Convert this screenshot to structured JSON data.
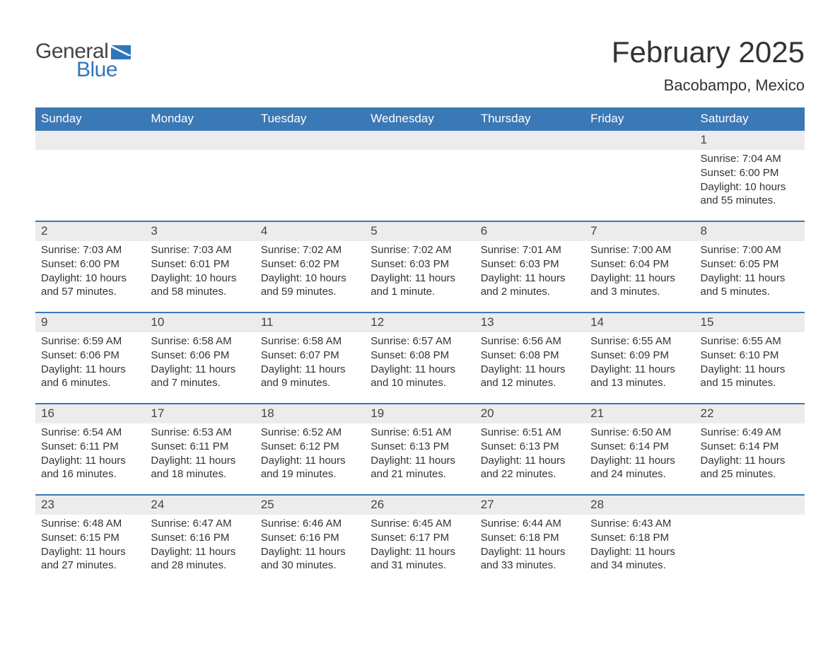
{
  "brand": {
    "name_part1": "General",
    "name_part2": "Blue",
    "text_color": "#444444",
    "accent_color": "#2f77bb",
    "flag_color": "#2f77bb"
  },
  "header": {
    "month_title": "February 2025",
    "location": "Bacobampo, Mexico",
    "title_fontsize": 42,
    "location_fontsize": 22,
    "title_color": "#333333"
  },
  "calendar": {
    "header_bg": "#3b78b6",
    "header_text_color": "#ffffff",
    "daynum_bg": "#ececec",
    "week_border_color": "#3b78b6",
    "text_color": "#333333",
    "weekdays": [
      "Sunday",
      "Monday",
      "Tuesday",
      "Wednesday",
      "Thursday",
      "Friday",
      "Saturday"
    ],
    "weeks": [
      {
        "days": [
          {
            "num": "",
            "lines": []
          },
          {
            "num": "",
            "lines": []
          },
          {
            "num": "",
            "lines": []
          },
          {
            "num": "",
            "lines": []
          },
          {
            "num": "",
            "lines": []
          },
          {
            "num": "",
            "lines": []
          },
          {
            "num": "1",
            "lines": [
              "Sunrise: 7:04 AM",
              "Sunset: 6:00 PM",
              "Daylight: 10 hours and 55 minutes."
            ]
          }
        ]
      },
      {
        "days": [
          {
            "num": "2",
            "lines": [
              "Sunrise: 7:03 AM",
              "Sunset: 6:00 PM",
              "Daylight: 10 hours and 57 minutes."
            ]
          },
          {
            "num": "3",
            "lines": [
              "Sunrise: 7:03 AM",
              "Sunset: 6:01 PM",
              "Daylight: 10 hours and 58 minutes."
            ]
          },
          {
            "num": "4",
            "lines": [
              "Sunrise: 7:02 AM",
              "Sunset: 6:02 PM",
              "Daylight: 10 hours and 59 minutes."
            ]
          },
          {
            "num": "5",
            "lines": [
              "Sunrise: 7:02 AM",
              "Sunset: 6:03 PM",
              "Daylight: 11 hours and 1 minute."
            ]
          },
          {
            "num": "6",
            "lines": [
              "Sunrise: 7:01 AM",
              "Sunset: 6:03 PM",
              "Daylight: 11 hours and 2 minutes."
            ]
          },
          {
            "num": "7",
            "lines": [
              "Sunrise: 7:00 AM",
              "Sunset: 6:04 PM",
              "Daylight: 11 hours and 3 minutes."
            ]
          },
          {
            "num": "8",
            "lines": [
              "Sunrise: 7:00 AM",
              "Sunset: 6:05 PM",
              "Daylight: 11 hours and 5 minutes."
            ]
          }
        ]
      },
      {
        "days": [
          {
            "num": "9",
            "lines": [
              "Sunrise: 6:59 AM",
              "Sunset: 6:06 PM",
              "Daylight: 11 hours and 6 minutes."
            ]
          },
          {
            "num": "10",
            "lines": [
              "Sunrise: 6:58 AM",
              "Sunset: 6:06 PM",
              "Daylight: 11 hours and 7 minutes."
            ]
          },
          {
            "num": "11",
            "lines": [
              "Sunrise: 6:58 AM",
              "Sunset: 6:07 PM",
              "Daylight: 11 hours and 9 minutes."
            ]
          },
          {
            "num": "12",
            "lines": [
              "Sunrise: 6:57 AM",
              "Sunset: 6:08 PM",
              "Daylight: 11 hours and 10 minutes."
            ]
          },
          {
            "num": "13",
            "lines": [
              "Sunrise: 6:56 AM",
              "Sunset: 6:08 PM",
              "Daylight: 11 hours and 12 minutes."
            ]
          },
          {
            "num": "14",
            "lines": [
              "Sunrise: 6:55 AM",
              "Sunset: 6:09 PM",
              "Daylight: 11 hours and 13 minutes."
            ]
          },
          {
            "num": "15",
            "lines": [
              "Sunrise: 6:55 AM",
              "Sunset: 6:10 PM",
              "Daylight: 11 hours and 15 minutes."
            ]
          }
        ]
      },
      {
        "days": [
          {
            "num": "16",
            "lines": [
              "Sunrise: 6:54 AM",
              "Sunset: 6:11 PM",
              "Daylight: 11 hours and 16 minutes."
            ]
          },
          {
            "num": "17",
            "lines": [
              "Sunrise: 6:53 AM",
              "Sunset: 6:11 PM",
              "Daylight: 11 hours and 18 minutes."
            ]
          },
          {
            "num": "18",
            "lines": [
              "Sunrise: 6:52 AM",
              "Sunset: 6:12 PM",
              "Daylight: 11 hours and 19 minutes."
            ]
          },
          {
            "num": "19",
            "lines": [
              "Sunrise: 6:51 AM",
              "Sunset: 6:13 PM",
              "Daylight: 11 hours and 21 minutes."
            ]
          },
          {
            "num": "20",
            "lines": [
              "Sunrise: 6:51 AM",
              "Sunset: 6:13 PM",
              "Daylight: 11 hours and 22 minutes."
            ]
          },
          {
            "num": "21",
            "lines": [
              "Sunrise: 6:50 AM",
              "Sunset: 6:14 PM",
              "Daylight: 11 hours and 24 minutes."
            ]
          },
          {
            "num": "22",
            "lines": [
              "Sunrise: 6:49 AM",
              "Sunset: 6:14 PM",
              "Daylight: 11 hours and 25 minutes."
            ]
          }
        ]
      },
      {
        "days": [
          {
            "num": "23",
            "lines": [
              "Sunrise: 6:48 AM",
              "Sunset: 6:15 PM",
              "Daylight: 11 hours and 27 minutes."
            ]
          },
          {
            "num": "24",
            "lines": [
              "Sunrise: 6:47 AM",
              "Sunset: 6:16 PM",
              "Daylight: 11 hours and 28 minutes."
            ]
          },
          {
            "num": "25",
            "lines": [
              "Sunrise: 6:46 AM",
              "Sunset: 6:16 PM",
              "Daylight: 11 hours and 30 minutes."
            ]
          },
          {
            "num": "26",
            "lines": [
              "Sunrise: 6:45 AM",
              "Sunset: 6:17 PM",
              "Daylight: 11 hours and 31 minutes."
            ]
          },
          {
            "num": "27",
            "lines": [
              "Sunrise: 6:44 AM",
              "Sunset: 6:18 PM",
              "Daylight: 11 hours and 33 minutes."
            ]
          },
          {
            "num": "28",
            "lines": [
              "Sunrise: 6:43 AM",
              "Sunset: 6:18 PM",
              "Daylight: 11 hours and 34 minutes."
            ]
          },
          {
            "num": "",
            "lines": []
          }
        ]
      }
    ]
  }
}
